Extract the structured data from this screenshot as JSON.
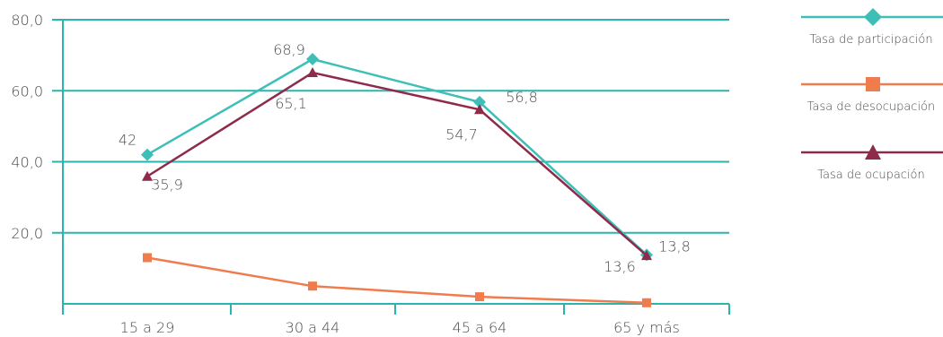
{
  "chart_data": {
    "type": "line",
    "categories": [
      "15 a 29",
      "30 a 44",
      "45 a 64",
      "65 y más"
    ],
    "y_tick_labels": [
      "80,0",
      "60,0",
      "40,0",
      "20,0"
    ],
    "ylim": [
      0,
      80
    ],
    "grid": true,
    "legend_position": "right",
    "series": [
      {
        "name": "Tasa de participación",
        "color": "#3dbfb8",
        "marker": "diamond",
        "values": [
          42,
          68.9,
          56.8,
          13.8
        ],
        "labels": [
          "42",
          "68,9",
          "56,8",
          "13,8"
        ]
      },
      {
        "name": "Tasa de desocupación",
        "color": "#f07c4d",
        "marker": "square",
        "values": [
          13,
          5,
          2,
          0.3
        ],
        "labels": [
          "",
          "",
          "",
          ""
        ]
      },
      {
        "name": "Tasa de ocupación",
        "color": "#8e2a4a",
        "marker": "triangle",
        "values": [
          35.9,
          65.1,
          54.7,
          13.6
        ],
        "labels": [
          "35,9",
          "65,1",
          "54,7",
          "13,6"
        ]
      }
    ]
  }
}
